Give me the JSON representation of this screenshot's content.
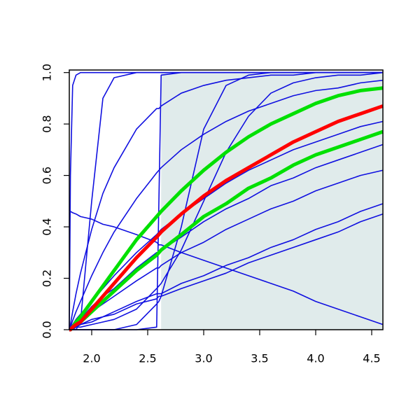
{
  "chart_data": {
    "type": "line",
    "x": [
      1.8,
      1.81,
      1.83,
      1.86,
      1.9,
      2.0,
      2.1,
      2.2,
      2.4,
      2.58,
      2.6,
      2.62,
      2.8,
      3.0,
      3.2,
      3.4,
      3.6,
      3.8,
      4.0,
      4.2,
      4.4,
      4.6
    ],
    "xlim": [
      1.8,
      4.6
    ],
    "ylim": [
      0,
      1.01
    ],
    "xticks": [
      {
        "value": 2,
        "label": "2.0"
      },
      2.5,
      {
        "value": 3,
        "label": "3.0"
      },
      3.5,
      {
        "value": 4,
        "label": "4.0"
      },
      4.5
    ],
    "yticks": [
      {
        "value": 0,
        "label": "0.0"
      },
      0.2,
      0.4,
      0.6,
      0.8,
      {
        "value": 1,
        "label": "1.0"
      }
    ],
    "band": {
      "x": [
        2.62,
        4.6
      ],
      "color": "#e0ebeb"
    },
    "series": [
      {
        "color": "#1010e0",
        "linewidth": 1.6,
        "values": [
          0,
          0.6,
          0.95,
          0.99,
          1,
          1,
          1,
          1,
          1,
          1,
          1,
          1,
          1,
          1,
          1,
          1,
          1,
          1,
          1,
          1,
          1,
          1
        ]
      },
      {
        "color": "#1010e0",
        "linewidth": 1.6,
        "values": [
          0,
          0,
          0,
          0,
          0.03,
          0.5,
          0.9,
          0.98,
          1,
          1,
          1,
          1,
          1,
          1,
          1,
          1,
          1,
          1,
          1,
          1,
          1,
          1
        ]
      },
      {
        "color": "#1010e0",
        "linewidth": 1.6,
        "values": [
          0,
          0,
          0,
          0,
          0,
          0,
          0,
          0,
          0,
          0.01,
          0.5,
          0.99,
          1,
          1,
          1,
          1,
          1,
          1,
          1,
          1,
          1,
          1
        ]
      },
      {
        "color": "#1010e0",
        "linewidth": 1.6,
        "values": [
          0.46,
          0.46,
          0.455,
          0.45,
          0.44,
          0.43,
          0.41,
          0.4,
          0.37,
          0.34,
          0.33,
          0.33,
          0.3,
          0.27,
          0.24,
          0.21,
          0.18,
          0.15,
          0.11,
          0.08,
          0.05,
          0.02
        ]
      },
      {
        "color": "#1010e0",
        "linewidth": 1.6,
        "values": [
          0,
          0.02,
          0.07,
          0.14,
          0.22,
          0.39,
          0.53,
          0.63,
          0.78,
          0.86,
          0.86,
          0.87,
          0.92,
          0.95,
          0.97,
          0.98,
          0.99,
          0.99,
          1,
          1,
          1,
          1
        ]
      },
      {
        "color": "#1010e0",
        "linewidth": 1.6,
        "values": [
          0,
          0.01,
          0.035,
          0.07,
          0.11,
          0.21,
          0.3,
          0.38,
          0.51,
          0.61,
          0.62,
          0.63,
          0.7,
          0.76,
          0.81,
          0.85,
          0.88,
          0.91,
          0.93,
          0.94,
          0.96,
          0.97
        ]
      },
      {
        "color": "#1010e0",
        "linewidth": 1.6,
        "values": [
          0,
          0,
          0,
          0,
          0,
          0,
          0,
          0,
          0.02,
          0.1,
          0.11,
          0.13,
          0.4,
          0.78,
          0.95,
          0.99,
          1,
          1,
          1,
          1,
          1,
          1
        ]
      },
      {
        "color": "#1010e0",
        "linewidth": 1.6,
        "values": [
          0.01,
          0.01,
          0.01,
          0.01,
          0.01,
          0.02,
          0.03,
          0.04,
          0.08,
          0.16,
          0.17,
          0.18,
          0.31,
          0.5,
          0.69,
          0.83,
          0.92,
          0.96,
          0.98,
          0.99,
          0.99,
          1
        ]
      },
      {
        "color": "#1010e0",
        "linewidth": 1.6,
        "values": [
          0,
          0.01,
          0.02,
          0.04,
          0.06,
          0.11,
          0.16,
          0.21,
          0.3,
          0.37,
          0.38,
          0.39,
          0.45,
          0.51,
          0.57,
          0.62,
          0.66,
          0.7,
          0.73,
          0.76,
          0.79,
          0.81
        ]
      },
      {
        "color": "#1010e0",
        "linewidth": 1.6,
        "values": [
          0,
          0,
          0.01,
          0.03,
          0.04,
          0.09,
          0.13,
          0.16,
          0.24,
          0.3,
          0.3,
          0.31,
          0.36,
          0.42,
          0.47,
          0.51,
          0.56,
          0.59,
          0.63,
          0.66,
          0.69,
          0.72
        ]
      },
      {
        "color": "#1010e0",
        "linewidth": 1.6,
        "values": [
          0,
          0,
          0.01,
          0.02,
          0.03,
          0.07,
          0.1,
          0.13,
          0.19,
          0.24,
          0.24,
          0.25,
          0.3,
          0.34,
          0.39,
          0.43,
          0.47,
          0.5,
          0.54,
          0.57,
          0.6,
          0.62
        ]
      },
      {
        "color": "#1010e0",
        "linewidth": 1.6,
        "values": [
          0,
          0,
          0.01,
          0.01,
          0.02,
          0.04,
          0.05,
          0.07,
          0.11,
          0.14,
          0.14,
          0.14,
          0.18,
          0.21,
          0.25,
          0.28,
          0.32,
          0.35,
          0.39,
          0.42,
          0.46,
          0.49
        ]
      },
      {
        "color": "#1010e0",
        "linewidth": 1.6,
        "values": [
          0,
          0,
          0,
          0.01,
          0.02,
          0.03,
          0.05,
          0.06,
          0.1,
          0.12,
          0.13,
          0.13,
          0.16,
          0.19,
          0.22,
          0.26,
          0.29,
          0.32,
          0.35,
          0.38,
          0.42,
          0.45
        ]
      },
      {
        "color": "#00e000",
        "linewidth": 5,
        "values": [
          0,
          0,
          0.01,
          0.03,
          0.05,
          0.11,
          0.17,
          0.23,
          0.35,
          0.44,
          0.45,
          0.46,
          0.54,
          0.62,
          0.69,
          0.75,
          0.8,
          0.84,
          0.88,
          0.91,
          0.93,
          0.94
        ]
      },
      {
        "color": "#00e000",
        "linewidth": 5,
        "values": [
          0,
          0,
          0.01,
          0.02,
          0.03,
          0.07,
          0.11,
          0.15,
          0.23,
          0.29,
          0.3,
          0.31,
          0.37,
          0.44,
          0.49,
          0.55,
          0.59,
          0.64,
          0.68,
          0.71,
          0.74,
          0.77
        ]
      },
      {
        "color": "#ff0000",
        "linewidth": 5,
        "values": [
          0,
          0,
          0.01,
          0.02,
          0.03,
          0.08,
          0.13,
          0.18,
          0.28,
          0.36,
          0.37,
          0.38,
          0.45,
          0.52,
          0.58,
          0.63,
          0.68,
          0.73,
          0.77,
          0.81,
          0.84,
          0.87
        ]
      }
    ]
  }
}
